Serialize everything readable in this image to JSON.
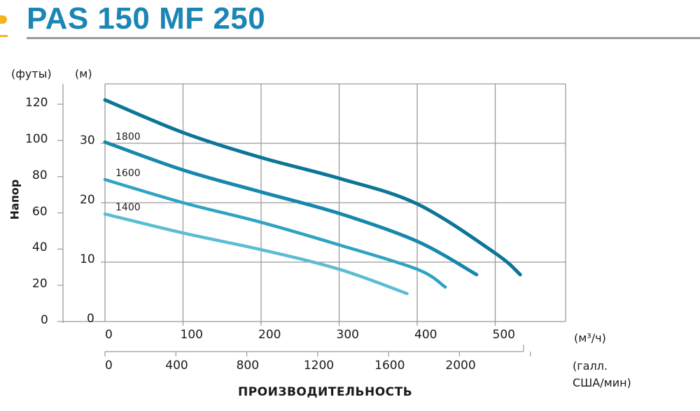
{
  "header": {
    "title": "PAS 150 MF 250"
  },
  "axes": {
    "y_left_unit": "(футы)",
    "y_right_unit": "(м)",
    "y_title": "Напор",
    "y_ft_ticks": [
      "120",
      "100",
      "80",
      "60",
      "40",
      "20",
      "0"
    ],
    "y_m_ticks": [
      "30",
      "20",
      "10",
      "0"
    ],
    "x_m3h_ticks": [
      "0",
      "100",
      "200",
      "300",
      "400",
      "500"
    ],
    "x_m3h_unit": "(м³/ч)",
    "x_gpm_ticks": [
      "0",
      "400",
      "800",
      "1200",
      "1600",
      "2000"
    ],
    "x_gpm_unit_line1": "(галл.",
    "x_gpm_unit_line2": "США/мин)",
    "x_title": "ПРОИЗВОДИТЕЛЬНОСТЬ"
  },
  "curve_labels": [
    "1800",
    "1600",
    "1400"
  ],
  "colors": {
    "title": "#1b86b4",
    "accent": "#f2b51c",
    "curve_top": "#0d7596",
    "curve_1800": "#1787ad",
    "curve_1600": "#2ea3c2",
    "curve_1400": "#5bbcd4",
    "grid": "#9a9a9a"
  },
  "chart_data": {
    "type": "line",
    "title": "PAS 150 MF 250",
    "xlabel": "ПРОИЗВОДИТЕЛЬНОСТЬ (м³/ч)",
    "xlabel_secondary": "(галл. США/мин)",
    "ylabel": "Напор (м)",
    "ylabel_secondary": "(футы)",
    "xlim": [
      0,
      590
    ],
    "ylim": [
      0,
      40
    ],
    "grid": true,
    "x_ticks": [
      0,
      100,
      200,
      300,
      400,
      500
    ],
    "x_secondary_ticks": [
      0,
      400,
      800,
      1200,
      1600,
      2000
    ],
    "y_ticks_m": [
      0,
      10,
      20,
      30
    ],
    "y_ticks_ft": [
      0,
      20,
      40,
      60,
      80,
      100,
      120
    ],
    "series": [
      {
        "name": "top (unlabeled)",
        "x": [
          0,
          100,
          200,
          300,
          400,
          500,
          532
        ],
        "y": [
          37.3,
          31.8,
          27.6,
          24.1,
          19.8,
          11.5,
          7.9
        ]
      },
      {
        "name": "1800",
        "x": [
          0,
          100,
          200,
          300,
          400,
          476
        ],
        "y": [
          30.2,
          25.5,
          21.8,
          18.2,
          13.5,
          7.9
        ]
      },
      {
        "name": "1600",
        "x": [
          0,
          100,
          200,
          300,
          400,
          436
        ],
        "y": [
          23.9,
          20.0,
          16.7,
          12.9,
          8.8,
          5.8
        ]
      },
      {
        "name": "1400",
        "x": [
          0,
          100,
          200,
          300,
          387
        ],
        "y": [
          18.1,
          14.9,
          12.1,
          8.8,
          4.7
        ]
      }
    ]
  }
}
